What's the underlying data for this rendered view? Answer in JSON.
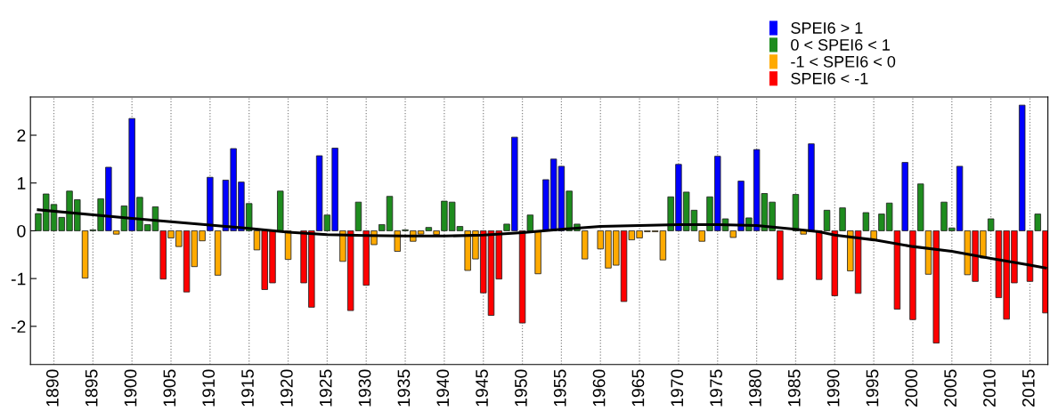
{
  "chart_data": {
    "type": "bar",
    "x": [
      1888,
      1889,
      1890,
      1891,
      1892,
      1893,
      1894,
      1895,
      1896,
      1897,
      1898,
      1899,
      1900,
      1901,
      1902,
      1903,
      1904,
      1905,
      1906,
      1907,
      1908,
      1909,
      1910,
      1911,
      1912,
      1913,
      1914,
      1915,
      1916,
      1917,
      1918,
      1919,
      1920,
      1921,
      1922,
      1923,
      1924,
      1925,
      1926,
      1927,
      1928,
      1929,
      1930,
      1931,
      1932,
      1933,
      1934,
      1935,
      1936,
      1937,
      1938,
      1939,
      1940,
      1941,
      1942,
      1943,
      1944,
      1945,
      1946,
      1947,
      1948,
      1949,
      1950,
      1951,
      1952,
      1953,
      1954,
      1955,
      1956,
      1957,
      1958,
      1959,
      1960,
      1961,
      1962,
      1963,
      1964,
      1965,
      1966,
      1967,
      1968,
      1969,
      1970,
      1971,
      1972,
      1973,
      1974,
      1975,
      1976,
      1977,
      1978,
      1979,
      1980,
      1981,
      1982,
      1983,
      1984,
      1985,
      1986,
      1987,
      1988,
      1989,
      1990,
      1991,
      1992,
      1993,
      1994,
      1995,
      1996,
      1997,
      1998,
      1999,
      2000,
      2001,
      2002,
      2003,
      2004,
      2005,
      2006,
      2007,
      2008,
      2009,
      2010,
      2011,
      2012,
      2013,
      2014,
      2015,
      2016,
      2017
    ],
    "series": [
      {
        "name": "SPEI6 > 1",
        "color": "#0000ff",
        "values": [
          null,
          null,
          null,
          null,
          null,
          null,
          null,
          null,
          null,
          1.33,
          null,
          null,
          2.35,
          null,
          null,
          null,
          null,
          null,
          null,
          null,
          null,
          null,
          1.12,
          null,
          1.06,
          1.72,
          1.02,
          null,
          null,
          null,
          null,
          null,
          null,
          null,
          null,
          null,
          1.57,
          null,
          1.73,
          null,
          null,
          null,
          null,
          null,
          null,
          null,
          null,
          null,
          null,
          null,
          null,
          null,
          null,
          null,
          null,
          null,
          null,
          null,
          null,
          null,
          null,
          1.96,
          null,
          null,
          null,
          1.07,
          1.5,
          1.35,
          null,
          null,
          null,
          null,
          null,
          null,
          null,
          null,
          null,
          null,
          null,
          null,
          null,
          null,
          1.39,
          null,
          null,
          null,
          null,
          1.56,
          null,
          null,
          1.04,
          null,
          1.7,
          null,
          null,
          null,
          null,
          null,
          null,
          1.82,
          null,
          null,
          null,
          null,
          null,
          null,
          null,
          null,
          null,
          null,
          null,
          1.43,
          null,
          null,
          null,
          null,
          null,
          null,
          1.35,
          null,
          null,
          null,
          null,
          null,
          null,
          null,
          2.63,
          null,
          null,
          null
        ]
      },
      {
        "name": "0 < SPEI6 < 1",
        "color": "#1e8c1e",
        "values": [
          0.36,
          0.77,
          0.55,
          0.28,
          0.83,
          0.65,
          null,
          0.02,
          0.67,
          null,
          null,
          0.52,
          null,
          0.7,
          0.13,
          0.5,
          null,
          null,
          null,
          null,
          null,
          null,
          null,
          null,
          null,
          null,
          null,
          0.57,
          null,
          null,
          null,
          0.83,
          null,
          null,
          null,
          null,
          null,
          0.33,
          null,
          null,
          null,
          0.6,
          null,
          null,
          0.13,
          0.72,
          null,
          0.02,
          null,
          null,
          0.07,
          null,
          0.62,
          0.6,
          0.09,
          null,
          null,
          null,
          null,
          null,
          0.14,
          null,
          null,
          0.33,
          null,
          null,
          null,
          null,
          0.83,
          0.14,
          null,
          null,
          null,
          null,
          null,
          null,
          null,
          null,
          null,
          null,
          null,
          0.71,
          null,
          0.81,
          0.43,
          null,
          0.71,
          null,
          0.25,
          null,
          null,
          0.27,
          null,
          0.78,
          0.6,
          null,
          null,
          0.76,
          null,
          null,
          null,
          0.43,
          null,
          0.48,
          null,
          null,
          0.38,
          null,
          0.35,
          0.58,
          null,
          null,
          null,
          0.98,
          null,
          null,
          0.6,
          0.06,
          null,
          null,
          null,
          null,
          0.25,
          null,
          null,
          null,
          null,
          null,
          0.35,
          null
        ]
      },
      {
        "name": "-1 < SPEI6 < 0",
        "color": "#ffaa00",
        "values": [
          null,
          null,
          null,
          null,
          null,
          null,
          -0.99,
          null,
          null,
          null,
          -0.07,
          null,
          null,
          null,
          null,
          null,
          null,
          -0.15,
          -0.33,
          null,
          -0.75,
          -0.21,
          null,
          -0.93,
          null,
          null,
          null,
          null,
          -0.4,
          null,
          null,
          null,
          -0.6,
          null,
          null,
          null,
          null,
          null,
          null,
          -0.64,
          null,
          null,
          null,
          -0.29,
          null,
          null,
          -0.43,
          null,
          -0.22,
          -0.07,
          null,
          -0.08,
          null,
          null,
          null,
          -0.83,
          -0.59,
          null,
          null,
          null,
          null,
          null,
          null,
          null,
          -0.9,
          null,
          null,
          null,
          null,
          null,
          -0.59,
          null,
          -0.38,
          -0.78,
          -0.72,
          null,
          -0.19,
          -0.15,
          -0.02,
          -0.02,
          -0.61,
          null,
          null,
          null,
          null,
          -0.22,
          null,
          null,
          null,
          -0.14,
          null,
          null,
          null,
          null,
          null,
          null,
          null,
          null,
          -0.07,
          null,
          null,
          null,
          null,
          null,
          -0.84,
          null,
          null,
          -0.19,
          null,
          null,
          null,
          null,
          null,
          null,
          -0.91,
          null,
          null,
          null,
          null,
          -0.92,
          null,
          -0.57,
          null,
          null,
          null,
          null,
          null,
          null,
          null,
          null
        ]
      },
      {
        "name": "SPEI6 < -1",
        "color": "#ff0000",
        "values": [
          null,
          null,
          null,
          null,
          null,
          null,
          null,
          null,
          null,
          null,
          null,
          null,
          null,
          null,
          null,
          null,
          -1.01,
          null,
          null,
          -1.28,
          null,
          null,
          null,
          null,
          null,
          null,
          null,
          null,
          null,
          -1.23,
          -1.09,
          null,
          null,
          null,
          -1.09,
          -1.6,
          null,
          null,
          null,
          null,
          -1.67,
          null,
          -1.14,
          null,
          null,
          null,
          null,
          null,
          null,
          null,
          null,
          null,
          null,
          null,
          null,
          null,
          null,
          -1.3,
          -1.77,
          -1.01,
          null,
          null,
          -1.93,
          null,
          null,
          null,
          null,
          null,
          null,
          null,
          null,
          null,
          null,
          null,
          null,
          -1.48,
          null,
          null,
          null,
          null,
          null,
          null,
          null,
          null,
          null,
          null,
          null,
          null,
          null,
          null,
          null,
          null,
          null,
          null,
          null,
          -1.02,
          null,
          null,
          null,
          null,
          -1.02,
          null,
          -1.36,
          null,
          null,
          -1.31,
          null,
          null,
          null,
          null,
          -1.64,
          null,
          -1.86,
          null,
          null,
          -2.35,
          null,
          null,
          null,
          null,
          -1.06,
          null,
          null,
          -1.4,
          -1.85,
          -1.09,
          null,
          -1.06,
          null,
          -1.72
        ]
      },
      {
        "type": "line",
        "color": "#000000",
        "x": [
          1888,
          1900,
          1910,
          1915,
          1920,
          1925,
          1930,
          1935,
          1940,
          1945,
          1950,
          1955,
          1960,
          1965,
          1970,
          1975,
          1980,
          1985,
          1988,
          1990,
          1995,
          2000,
          2005,
          2010,
          2015,
          2017
        ],
        "values": [
          0.44,
          0.26,
          0.12,
          0.05,
          -0.03,
          -0.08,
          -0.1,
          -0.11,
          -0.11,
          -0.09,
          -0.04,
          0.03,
          0.09,
          0.11,
          0.13,
          0.13,
          0.11,
          0.03,
          -0.02,
          -0.09,
          -0.19,
          -0.33,
          -0.43,
          -0.58,
          -0.72,
          -0.78
        ]
      }
    ],
    "xlim": [
      1887,
      2017.3
    ],
    "xticks": [
      1890,
      1895,
      1900,
      1905,
      1910,
      1915,
      1920,
      1925,
      1930,
      1935,
      1940,
      1945,
      1950,
      1955,
      1960,
      1965,
      1970,
      1975,
      1980,
      1985,
      1990,
      1995,
      2000,
      2005,
      2010,
      2015
    ],
    "ylim": [
      -2.8,
      2.8
    ],
    "yticks": [
      -2,
      -1,
      0,
      1,
      2
    ],
    "grid": "x",
    "legend": "top right"
  }
}
